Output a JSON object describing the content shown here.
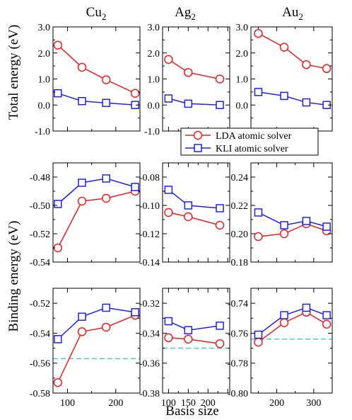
{
  "figure": {
    "ylabel_top": "Total energy (eV)",
    "ylabel_bottom": "Binding energy (eV)",
    "xlabel": "Basis size",
    "columns": [
      {
        "base": "Cu",
        "sub": "2"
      },
      {
        "base": "Ag",
        "sub": "2"
      },
      {
        "base": "Au",
        "sub": "2"
      }
    ],
    "legend": [
      {
        "label": "LDA atomic solver",
        "color": "#e8201f",
        "marker": "circle"
      },
      {
        "label": "KLI  atomic solver",
        "color": "#1f22e8",
        "marker": "square"
      }
    ],
    "colors": {
      "lda": "#e8201f",
      "kli": "#1f22e8",
      "reference": "#40d0d0"
    }
  },
  "chart_data": [
    {
      "type": "line",
      "panel": "Cu2 total",
      "xlim": [
        70,
        250
      ],
      "ylim": [
        -1.0,
        3.0
      ],
      "yticks": [
        "-1.0",
        "0.0",
        "1.0",
        "2.0",
        "3.0"
      ],
      "x": [
        80,
        130,
        180,
        240
      ],
      "series": [
        {
          "name": "LDA atomic solver",
          "values": [
            2.3,
            1.45,
            0.97,
            0.45
          ]
        },
        {
          "name": "KLI  atomic solver",
          "values": [
            0.45,
            0.15,
            0.08,
            0.0
          ]
        }
      ]
    },
    {
      "type": "line",
      "panel": "Ag2 total",
      "xlim": [
        85,
        255
      ],
      "ylim": [
        -1.0,
        3.0
      ],
      "yticks": [
        "-1.0",
        "0.0",
        "1.0",
        "2.0",
        "3.0"
      ],
      "x": [
        100,
        150,
        230
      ],
      "series": [
        {
          "name": "LDA atomic solver",
          "values": [
            1.75,
            1.25,
            1.0
          ]
        },
        {
          "name": "KLI  atomic solver",
          "values": [
            0.25,
            0.05,
            0.0
          ]
        }
      ]
    },
    {
      "type": "line",
      "panel": "Au2 total",
      "xlim": [
        130,
        350
      ],
      "ylim": [
        -1.0,
        3.0
      ],
      "yticks": [
        "-1.0",
        "0.0",
        "1.0",
        "2.0",
        "3.0"
      ],
      "x": [
        150,
        220,
        280,
        335
      ],
      "series": [
        {
          "name": "LDA atomic solver",
          "values": [
            2.75,
            2.22,
            1.55,
            1.4
          ]
        },
        {
          "name": "KLI  atomic solver",
          "values": [
            0.5,
            0.35,
            0.1,
            0.0
          ]
        }
      ]
    },
    {
      "type": "line",
      "panel": "Cu2 binding (upper)",
      "xlim": [
        70,
        250
      ],
      "ylim": [
        -0.54,
        -0.47
      ],
      "yticks": [
        "-0.54",
        "-0.52",
        "-0.50",
        "-0.48"
      ],
      "x": [
        80,
        130,
        180,
        240
      ],
      "series": [
        {
          "name": "LDA atomic solver",
          "values": [
            -0.53,
            -0.497,
            -0.495,
            -0.49
          ]
        },
        {
          "name": "KLI  atomic solver",
          "values": [
            -0.499,
            -0.484,
            -0.481,
            -0.487
          ]
        }
      ]
    },
    {
      "type": "line",
      "panel": "Ag2 binding (upper)",
      "xlim": [
        85,
        255
      ],
      "ylim": [
        -0.14,
        -0.07
      ],
      "yticks": [
        "-0.14",
        "-0.12",
        "-0.10",
        "-0.08"
      ],
      "x": [
        100,
        150,
        230
      ],
      "series": [
        {
          "name": "LDA atomic solver",
          "values": [
            -0.105,
            -0.108,
            -0.114
          ]
        },
        {
          "name": "KLI  atomic solver",
          "values": [
            -0.089,
            -0.1,
            -0.102
          ]
        }
      ]
    },
    {
      "type": "line",
      "panel": "Au2 binding (upper)",
      "xlim": [
        130,
        350
      ],
      "ylim": [
        0.18,
        0.25
      ],
      "yticks": [
        "0.18",
        "0.20",
        "0.22",
        "0.24"
      ],
      "x": [
        150,
        220,
        280,
        335
      ],
      "series": [
        {
          "name": "LDA atomic solver",
          "values": [
            0.198,
            0.2,
            0.207,
            0.202
          ]
        },
        {
          "name": "KLI  atomic solver",
          "values": [
            0.215,
            0.206,
            0.209,
            0.205
          ]
        }
      ]
    },
    {
      "type": "line",
      "panel": "Cu2 binding (lower)",
      "xlim": [
        70,
        250
      ],
      "ylim": [
        -0.58,
        -0.51
      ],
      "yticks": [
        "-0.58",
        "-0.56",
        "-0.54",
        "-0.52"
      ],
      "xticks": [
        "100",
        "200"
      ],
      "reference_y": -0.557,
      "x": [
        80,
        130,
        180,
        240
      ],
      "series": [
        {
          "name": "LDA atomic solver",
          "values": [
            -0.573,
            -0.539,
            -0.536,
            -0.528
          ]
        },
        {
          "name": "KLI  atomic solver",
          "values": [
            -0.544,
            -0.529,
            -0.523,
            -0.526
          ]
        }
      ]
    },
    {
      "type": "line",
      "panel": "Ag2 binding (lower)",
      "xlim": [
        85,
        255
      ],
      "ylim": [
        -0.38,
        -0.31
      ],
      "yticks": [
        "-0.38",
        "-0.36",
        "-0.34",
        "-0.32"
      ],
      "xticks": [
        "100",
        "150",
        "200"
      ],
      "reference_y": -0.35,
      "x": [
        100,
        150,
        230
      ],
      "series": [
        {
          "name": "LDA atomic solver",
          "values": [
            -0.343,
            -0.344,
            -0.347
          ]
        },
        {
          "name": "KLI  atomic solver",
          "values": [
            -0.332,
            -0.338,
            -0.335
          ]
        }
      ]
    },
    {
      "type": "line",
      "panel": "Au2 binding (lower)",
      "xlim": [
        130,
        350
      ],
      "ylim": [
        -0.8,
        -0.73
      ],
      "yticks": [
        "-0.80",
        "-0.78",
        "-0.76",
        "-0.74"
      ],
      "xticks": [
        "200",
        "300"
      ],
      "reference_y": -0.764,
      "x": [
        150,
        220,
        280,
        335
      ],
      "series": [
        {
          "name": "LDA atomic solver",
          "values": [
            -0.766,
            -0.753,
            -0.746,
            -0.754
          ]
        },
        {
          "name": "KLI  atomic solver",
          "values": [
            -0.761,
            -0.748,
            -0.743,
            -0.748
          ]
        }
      ]
    }
  ]
}
